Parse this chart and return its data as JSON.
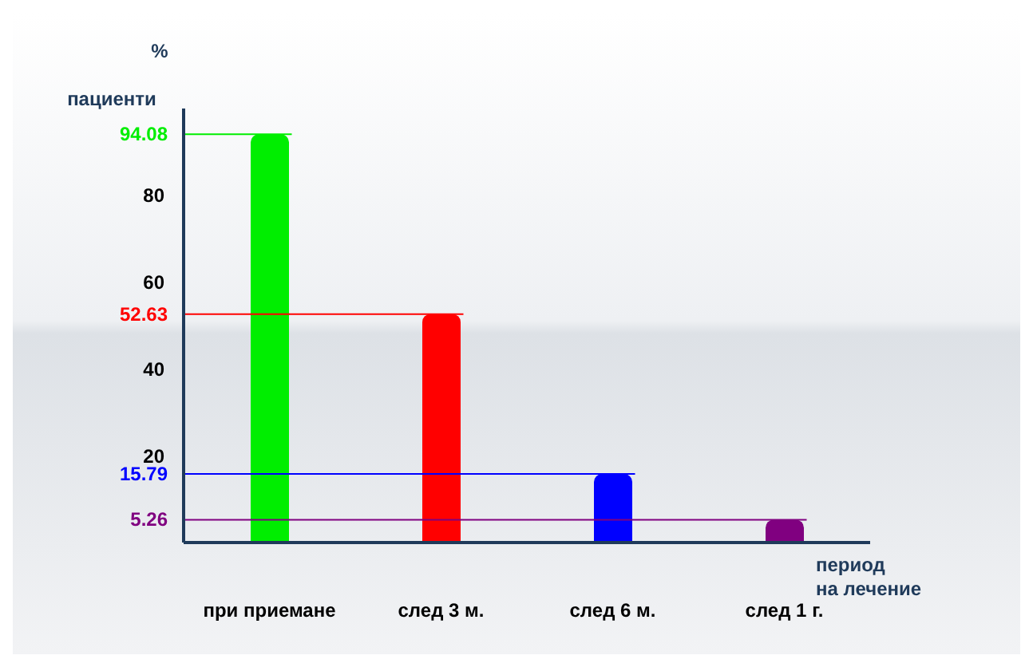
{
  "chart_data": {
    "type": "bar",
    "xlabel": "период\nна лечение",
    "ylabel": "%\nпациенти",
    "categories": [
      "при приемане",
      "след 3 м.",
      "след 6 м.",
      "след 1 г."
    ],
    "values": [
      94.08,
      52.63,
      15.79,
      5.26
    ],
    "colors": [
      "#00ee00",
      "#ff0000",
      "#0000ff",
      "#800080"
    ],
    "ylim": [
      0,
      100
    ],
    "yticks": [
      20,
      40,
      60,
      80
    ],
    "grid": false,
    "ref_lines": [
      {
        "axis": "y",
        "value": 94.08,
        "label": "94.08",
        "color": "#00ee00"
      },
      {
        "axis": "y",
        "value": 52.63,
        "label": "52.63",
        "color": "#ff0000"
      },
      {
        "axis": "y",
        "value": 15.79,
        "label": "15.79",
        "color": "#0000ff"
      },
      {
        "axis": "y",
        "value": 5.26,
        "label": "5.26",
        "color": "#800080"
      }
    ]
  }
}
